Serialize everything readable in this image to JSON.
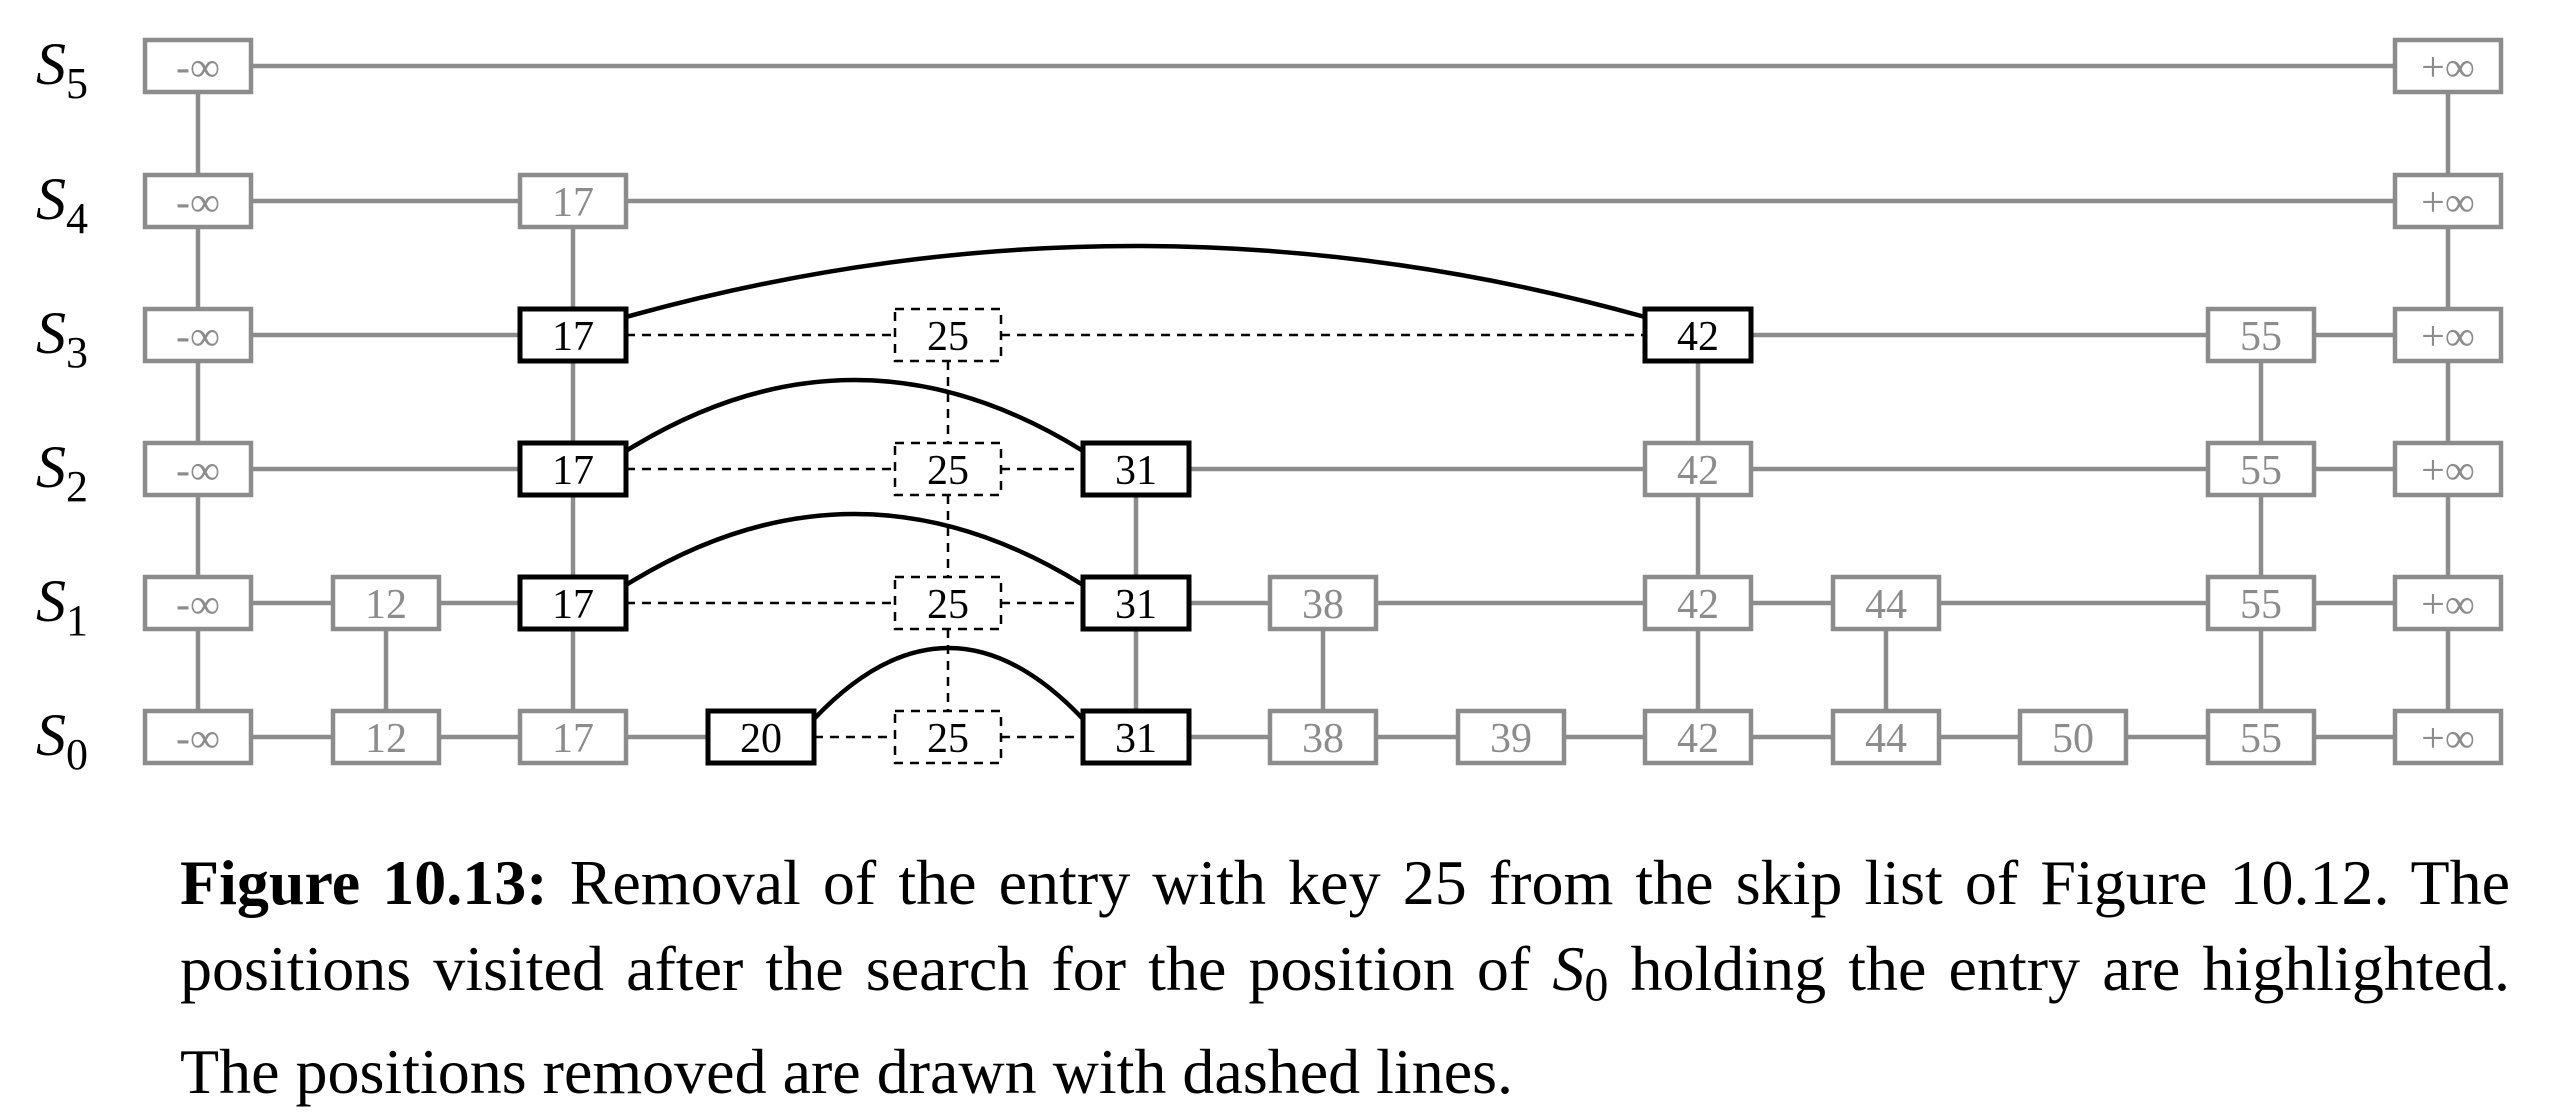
{
  "level_labels": [
    "S5",
    "S4",
    "S3",
    "S2",
    "S1",
    "S0"
  ],
  "levels": [
    {
      "name": "S5",
      "keys": [
        "-∞",
        "+∞"
      ]
    },
    {
      "name": "S4",
      "keys": [
        "-∞",
        "17",
        "+∞"
      ]
    },
    {
      "name": "S3",
      "keys": [
        "-∞",
        "17",
        "25",
        "42",
        "55",
        "+∞"
      ]
    },
    {
      "name": "S2",
      "keys": [
        "-∞",
        "17",
        "25",
        "31",
        "42",
        "55",
        "+∞"
      ]
    },
    {
      "name": "S1",
      "keys": [
        "-∞",
        "12",
        "17",
        "25",
        "31",
        "38",
        "42",
        "44",
        "55",
        "+∞"
      ]
    },
    {
      "name": "S0",
      "keys": [
        "-∞",
        "12",
        "17",
        "20",
        "25",
        "31",
        "38",
        "39",
        "42",
        "44",
        "50",
        "55",
        "+∞"
      ]
    }
  ],
  "highlighted_positions": [
    {
      "level": "S3",
      "key": "17"
    },
    {
      "level": "S3",
      "key": "42"
    },
    {
      "level": "S2",
      "key": "17"
    },
    {
      "level": "S2",
      "key": "31"
    },
    {
      "level": "S1",
      "key": "17"
    },
    {
      "level": "S1",
      "key": "31"
    },
    {
      "level": "S0",
      "key": "20"
    },
    {
      "level": "S0",
      "key": "31"
    }
  ],
  "removed_key": "25",
  "colors": {
    "normal": "#8c8c8c",
    "highlight": "#000000",
    "background": "#ffffff"
  },
  "caption": {
    "label": "Figure 10.13:",
    "text_part1": " Removal of the entry with key 25 from the skip list of Figure 10.12. The positions visited after the search for the position of ",
    "s0_base": "S",
    "s0_sub": "0",
    "text_part2": " holding the entry are highlighted. The positions removed are drawn with dashed lines."
  }
}
